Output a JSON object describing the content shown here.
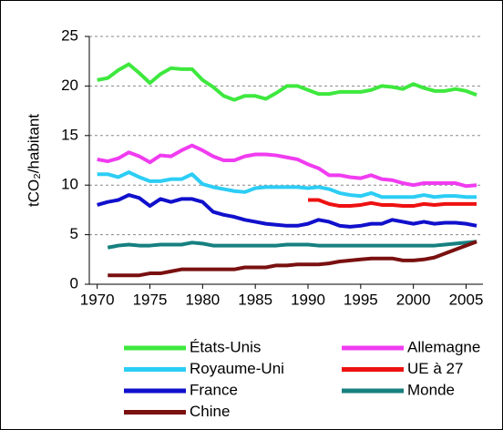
{
  "chart_data": {
    "type": "line",
    "y_label": "tCO₂/habitant",
    "x": [
      1970,
      1971,
      1972,
      1973,
      1974,
      1975,
      1976,
      1977,
      1978,
      1979,
      1980,
      1981,
      1982,
      1983,
      1984,
      1985,
      1986,
      1987,
      1988,
      1989,
      1990,
      1991,
      1992,
      1993,
      1994,
      1995,
      1996,
      1997,
      1998,
      1999,
      2000,
      2001,
      2002,
      2003,
      2004,
      2005,
      2006
    ],
    "xlim": [
      1969.25,
      2006.6
    ],
    "xticks": [
      1970,
      1975,
      1980,
      1985,
      1990,
      1995,
      2000,
      2005
    ],
    "ylim": [
      0,
      25
    ],
    "yticks": [
      0,
      5,
      10,
      15,
      20,
      25
    ],
    "grid": true,
    "legend": "bottom",
    "series": [
      {
        "name": "États-Unis",
        "color": "#3ee83e",
        "values": [
          20.6,
          20.8,
          21.6,
          22.2,
          21.3,
          20.3,
          21.2,
          21.8,
          21.7,
          21.7,
          20.6,
          19.9,
          19.0,
          18.6,
          19.0,
          19.0,
          18.7,
          19.3,
          20.0,
          20.0,
          19.6,
          19.2,
          19.2,
          19.4,
          19.4,
          19.4,
          19.6,
          20.0,
          19.9,
          19.7,
          20.2,
          19.8,
          19.5,
          19.5,
          19.7,
          19.5,
          19.1
        ]
      },
      {
        "name": "Allemagne",
        "color": "#f03cf0",
        "values": [
          12.6,
          12.4,
          12.7,
          13.3,
          12.9,
          12.3,
          13.0,
          12.9,
          13.5,
          14.0,
          13.5,
          12.9,
          12.5,
          12.5,
          12.9,
          13.1,
          13.1,
          13.0,
          12.8,
          12.6,
          12.1,
          11.7,
          11.0,
          11.0,
          10.8,
          10.7,
          11.0,
          10.6,
          10.5,
          10.2,
          10.0,
          10.2,
          10.2,
          10.2,
          10.2,
          9.9,
          10.0
        ]
      },
      {
        "name": "Royaume-Uni",
        "color": "#2ccdf5",
        "values": [
          11.1,
          11.1,
          10.8,
          11.3,
          10.8,
          10.4,
          10.4,
          10.6,
          10.6,
          11.1,
          10.1,
          9.8,
          9.6,
          9.4,
          9.3,
          9.7,
          9.8,
          9.8,
          9.8,
          9.8,
          9.7,
          9.8,
          9.6,
          9.2,
          9.0,
          8.9,
          9.2,
          8.8,
          8.8,
          8.8,
          8.8,
          9.0,
          8.8,
          8.9,
          8.9,
          8.8,
          8.8
        ]
      },
      {
        "name": "UE à 27",
        "color": "#ee1111",
        "values": [
          null,
          null,
          null,
          null,
          null,
          null,
          null,
          null,
          null,
          null,
          null,
          null,
          null,
          null,
          null,
          null,
          null,
          null,
          null,
          null,
          8.5,
          8.5,
          8.1,
          7.9,
          7.9,
          8.0,
          8.2,
          8.0,
          8.0,
          7.9,
          7.9,
          8.1,
          8.0,
          8.1,
          8.1,
          8.1,
          8.1
        ]
      },
      {
        "name": "France",
        "color": "#1010cc",
        "values": [
          8.0,
          8.3,
          8.5,
          9.0,
          8.7,
          7.9,
          8.6,
          8.3,
          8.6,
          8.6,
          8.3,
          7.3,
          7.0,
          6.8,
          6.5,
          6.3,
          6.1,
          6.0,
          5.9,
          5.9,
          6.1,
          6.5,
          6.3,
          5.9,
          5.8,
          5.9,
          6.1,
          6.1,
          6.5,
          6.3,
          6.1,
          6.3,
          6.1,
          6.2,
          6.2,
          6.1,
          5.9
        ]
      },
      {
        "name": "Monde",
        "color": "#178080",
        "values": [
          null,
          3.7,
          3.9,
          4.0,
          3.9,
          3.9,
          4.0,
          4.0,
          4.0,
          4.2,
          4.1,
          3.9,
          3.9,
          3.9,
          3.9,
          3.9,
          3.9,
          3.9,
          4.0,
          4.0,
          4.0,
          3.9,
          3.9,
          3.9,
          3.9,
          3.9,
          3.9,
          3.9,
          3.9,
          3.9,
          3.9,
          3.9,
          3.9,
          4.0,
          4.1,
          4.2,
          4.3
        ]
      },
      {
        "name": "Chine",
        "color": "#7a1010",
        "values": [
          null,
          0.9,
          0.9,
          0.9,
          0.9,
          1.1,
          1.1,
          1.3,
          1.5,
          1.5,
          1.5,
          1.5,
          1.5,
          1.5,
          1.7,
          1.7,
          1.7,
          1.9,
          1.9,
          2.0,
          2.0,
          2.0,
          2.1,
          2.3,
          2.4,
          2.5,
          2.6,
          2.6,
          2.6,
          2.4,
          2.4,
          2.5,
          2.7,
          3.1,
          3.5,
          3.9,
          4.3
        ]
      }
    ]
  }
}
